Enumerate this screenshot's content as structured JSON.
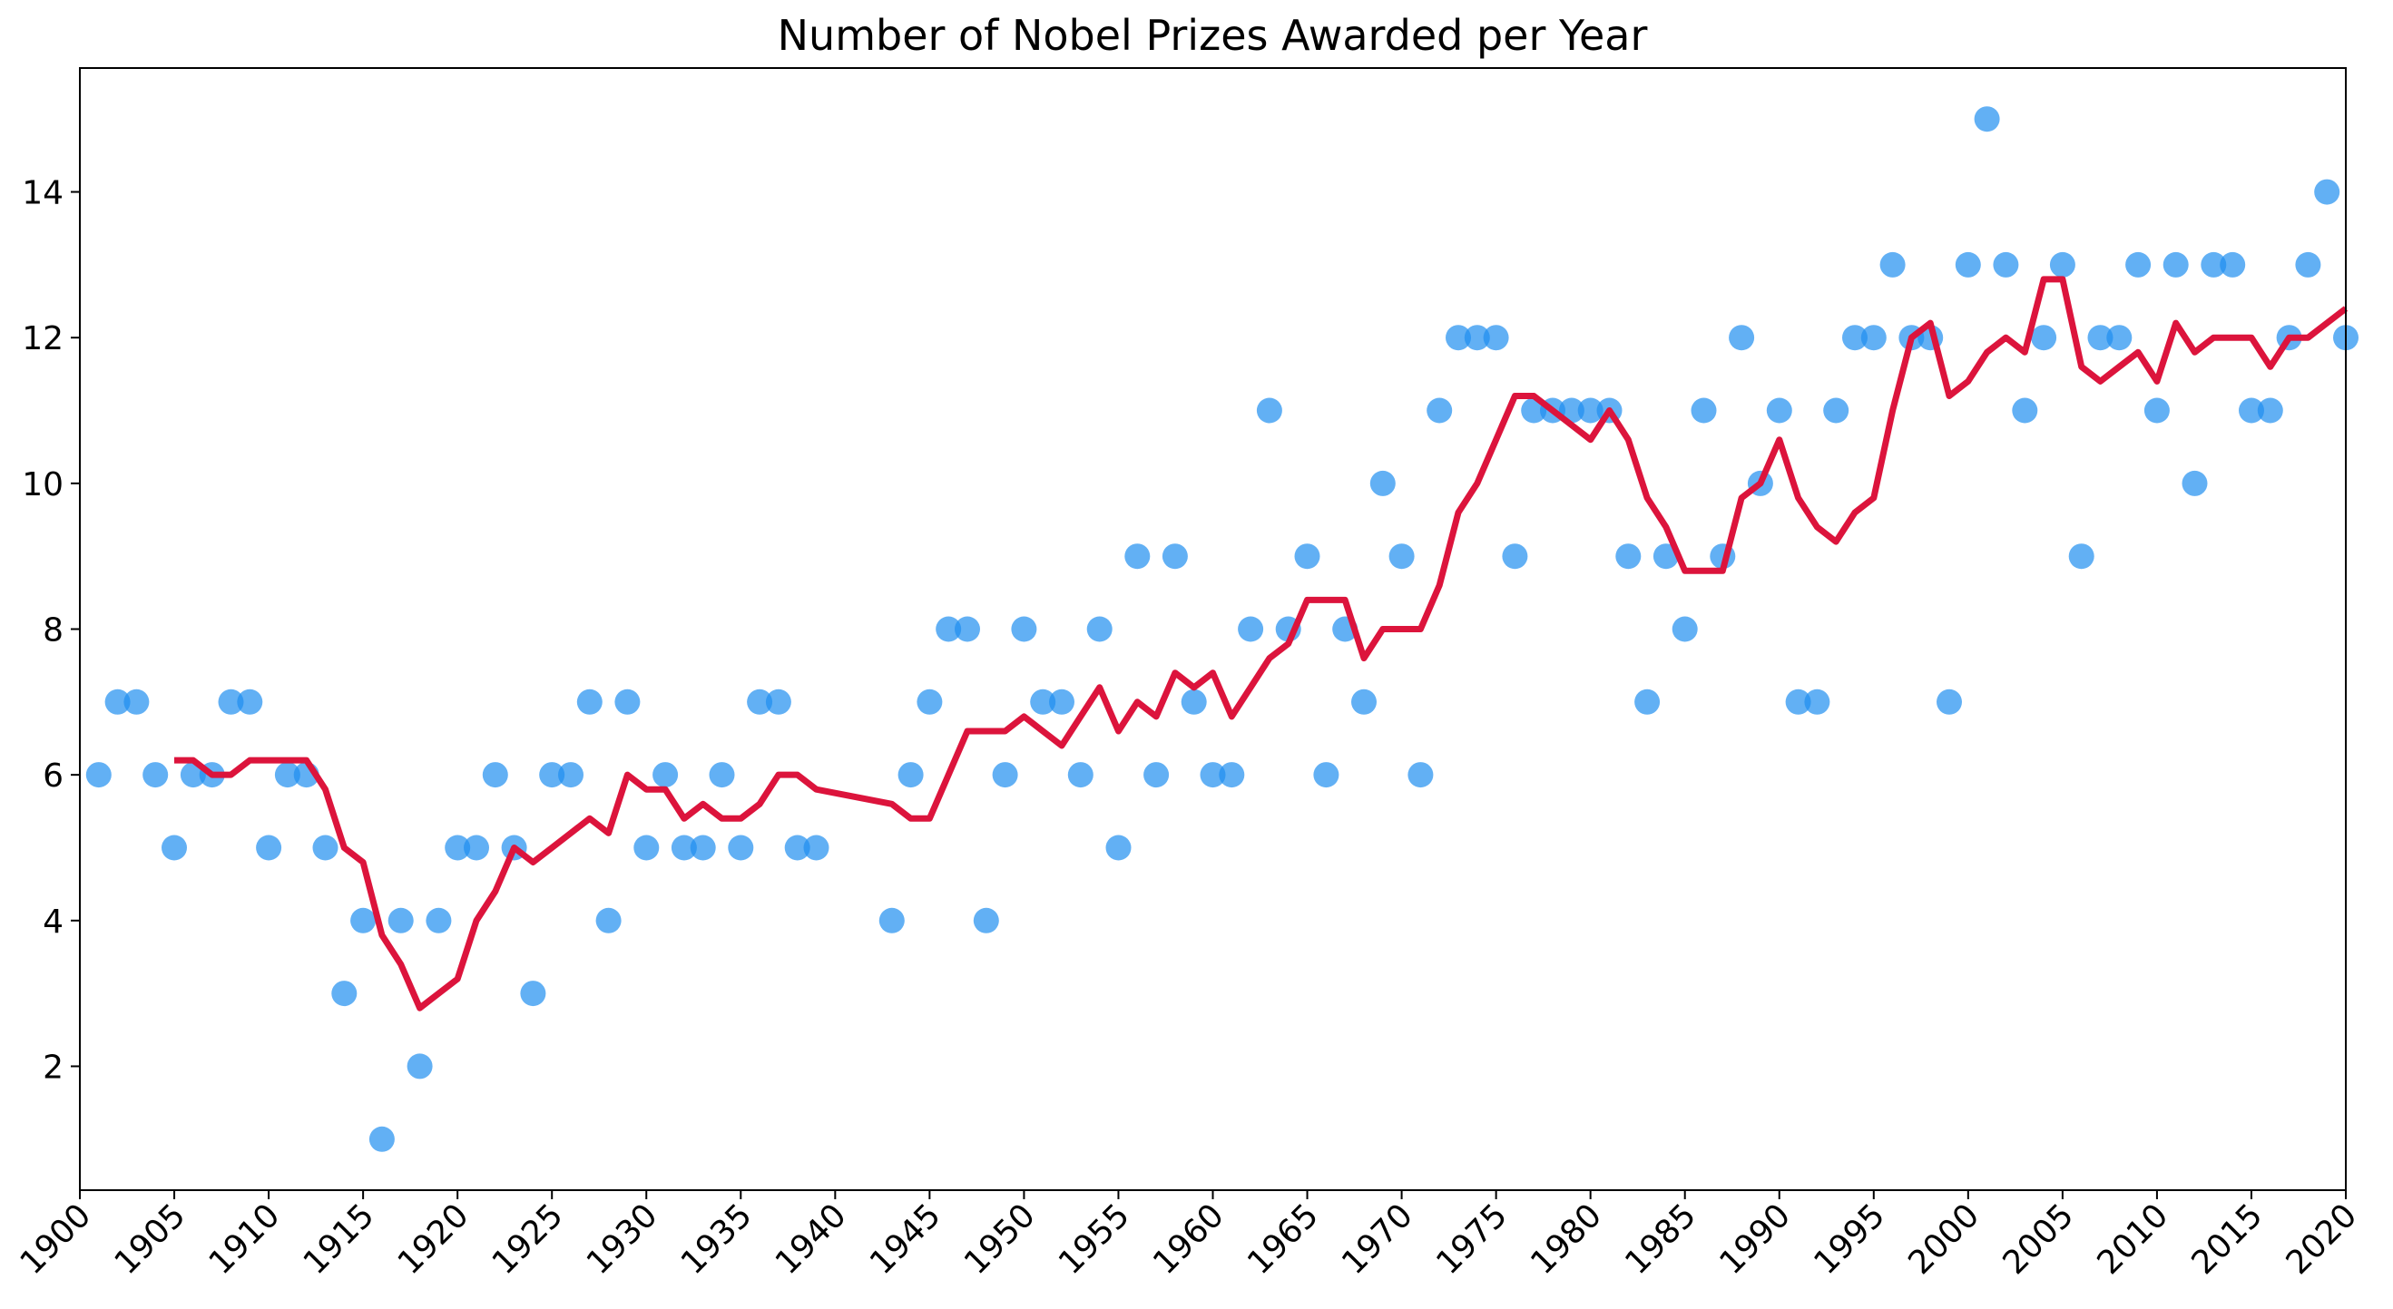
{
  "chart_data": {
    "type": "scatter",
    "title": "Number of Nobel Prizes Awarded per Year",
    "xlabel": "",
    "ylabel": "",
    "xlim": [
      1900,
      2020
    ],
    "ylim": [
      0.3,
      15.7
    ],
    "x_ticks": [
      1900,
      1905,
      1910,
      1915,
      1920,
      1925,
      1930,
      1935,
      1940,
      1945,
      1950,
      1955,
      1960,
      1965,
      1970,
      1975,
      1980,
      1985,
      1990,
      1995,
      2000,
      2005,
      2010,
      2015,
      2020
    ],
    "y_ticks": [
      2,
      4,
      6,
      8,
      10,
      12,
      14
    ],
    "grid": false,
    "legend": "none",
    "colors": {
      "points": "#1f8ff0",
      "line": "#dc143c"
    },
    "series": [
      {
        "type": "scatter",
        "x": [
          1901,
          1902,
          1903,
          1904,
          1905,
          1906,
          1907,
          1908,
          1909,
          1910,
          1911,
          1912,
          1913,
          1914,
          1915,
          1916,
          1917,
          1918,
          1919,
          1920,
          1921,
          1922,
          1923,
          1924,
          1925,
          1926,
          1927,
          1928,
          1929,
          1930,
          1931,
          1932,
          1933,
          1934,
          1935,
          1936,
          1937,
          1938,
          1939,
          1943,
          1944,
          1945,
          1946,
          1947,
          1948,
          1949,
          1950,
          1951,
          1952,
          1953,
          1954,
          1955,
          1956,
          1957,
          1958,
          1959,
          1960,
          1961,
          1962,
          1963,
          1964,
          1965,
          1966,
          1967,
          1968,
          1969,
          1970,
          1971,
          1972,
          1973,
          1974,
          1975,
          1976,
          1977,
          1978,
          1979,
          1980,
          1981,
          1982,
          1983,
          1984,
          1985,
          1986,
          1987,
          1988,
          1989,
          1990,
          1991,
          1992,
          1993,
          1994,
          1995,
          1996,
          1997,
          1998,
          1999,
          2000,
          2001,
          2002,
          2003,
          2004,
          2005,
          2006,
          2007,
          2008,
          2009,
          2010,
          2011,
          2012,
          2013,
          2014,
          2015,
          2016,
          2017,
          2018,
          2019,
          2020
        ],
        "y": [
          6,
          7,
          7,
          6,
          5,
          6,
          6,
          7,
          7,
          5,
          6,
          6,
          5,
          3,
          4,
          1,
          4,
          2,
          4,
          5,
          5,
          6,
          5,
          3,
          6,
          6,
          7,
          4,
          7,
          5,
          6,
          5,
          5,
          6,
          5,
          7,
          7,
          5,
          5,
          4,
          6,
          7,
          8,
          8,
          4,
          6,
          8,
          7,
          7,
          6,
          8,
          5,
          9,
          6,
          9,
          7,
          6,
          6,
          8,
          11,
          8,
          9,
          6,
          8,
          7,
          10,
          9,
          6,
          11,
          12,
          12,
          12,
          9,
          11,
          11,
          11,
          11,
          11,
          9,
          7,
          9,
          8,
          11,
          9,
          12,
          10,
          11,
          7,
          7,
          11,
          12,
          12,
          13,
          12,
          12,
          7,
          13,
          15,
          13,
          11,
          12,
          13,
          9,
          12,
          12,
          13,
          11,
          13,
          10,
          13,
          13,
          11,
          11,
          12,
          13,
          14,
          12
        ]
      },
      {
        "type": "line",
        "x": [
          1905,
          1906,
          1907,
          1908,
          1909,
          1910,
          1911,
          1912,
          1913,
          1914,
          1915,
          1916,
          1917,
          1918,
          1919,
          1920,
          1921,
          1922,
          1923,
          1924,
          1925,
          1926,
          1927,
          1928,
          1929,
          1930,
          1931,
          1932,
          1933,
          1934,
          1935,
          1936,
          1937,
          1938,
          1939,
          1943,
          1944,
          1945,
          1946,
          1947,
          1948,
          1949,
          1950,
          1951,
          1952,
          1953,
          1954,
          1955,
          1956,
          1957,
          1958,
          1959,
          1960,
          1961,
          1962,
          1963,
          1964,
          1965,
          1966,
          1967,
          1968,
          1969,
          1970,
          1971,
          1972,
          1973,
          1974,
          1975,
          1976,
          1977,
          1978,
          1979,
          1980,
          1981,
          1982,
          1983,
          1984,
          1985,
          1986,
          1987,
          1988,
          1989,
          1990,
          1991,
          1992,
          1993,
          1994,
          1995,
          1996,
          1997,
          1998,
          1999,
          2000,
          2001,
          2002,
          2003,
          2004,
          2005,
          2006,
          2007,
          2008,
          2009,
          2010,
          2011,
          2012,
          2013,
          2014,
          2015,
          2016,
          2017,
          2018,
          2019,
          2020
        ],
        "y": [
          6.2,
          6.2,
          6.0,
          6.0,
          6.2,
          6.2,
          6.2,
          6.2,
          5.8,
          5.0,
          4.8,
          3.8,
          3.4,
          2.8,
          3.0,
          3.2,
          4.0,
          4.4,
          5.0,
          4.8,
          5.0,
          5.2,
          5.4,
          5.2,
          6.0,
          5.8,
          5.8,
          5.4,
          5.6,
          5.4,
          5.4,
          5.6,
          6.0,
          6.0,
          5.8,
          5.6,
          5.4,
          5.4,
          6.0,
          6.6,
          6.6,
          6.6,
          6.8,
          6.6,
          6.4,
          6.8,
          7.2,
          6.6,
          7.0,
          6.8,
          7.4,
          7.2,
          7.4,
          6.8,
          7.2,
          7.6,
          7.8,
          8.4,
          8.4,
          8.4,
          7.6,
          8.0,
          8.0,
          8.0,
          8.6,
          9.6,
          10.0,
          10.6,
          11.2,
          11.2,
          11.0,
          10.8,
          10.6,
          11.0,
          10.6,
          9.8,
          9.4,
          8.8,
          8.8,
          8.8,
          9.8,
          10.0,
          10.6,
          9.8,
          9.4,
          9.2,
          9.6,
          9.8,
          11.0,
          12.0,
          12.2,
          11.2,
          11.4,
          11.8,
          12.0,
          11.8,
          12.8,
          12.8,
          11.6,
          11.4,
          11.6,
          11.8,
          11.4,
          12.2,
          11.8,
          12.0,
          12.0,
          12.0,
          11.6,
          12.0,
          12.0,
          12.2,
          12.4
        ]
      }
    ]
  }
}
